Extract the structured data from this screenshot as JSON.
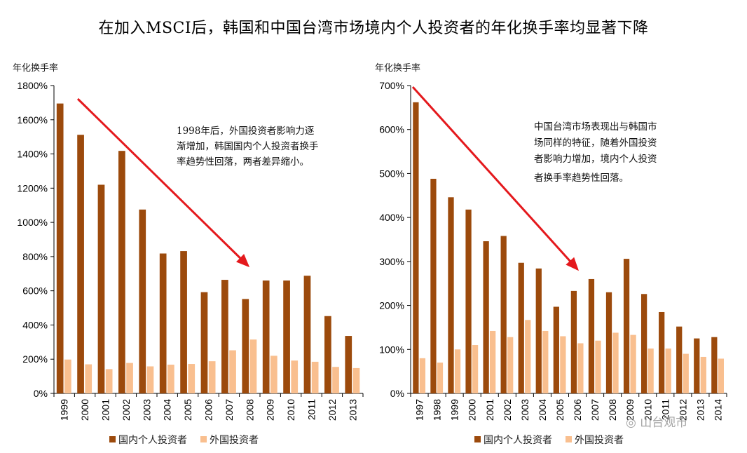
{
  "title": "在加入MSCI后，韩国和中国台湾市场境内个人投资者的年化换手率均显著下降",
  "legend": {
    "domestic": "国内个人投资者",
    "foreign": "外国投资者"
  },
  "colors": {
    "domestic": "#9c4a0c",
    "foreign": "#f9bf8f",
    "arrow": "#e4191d"
  },
  "watermark": "山台观市",
  "chart_data": [
    {
      "type": "bar",
      "ylabel": "年化换手率",
      "ylim": [
        0,
        1800
      ],
      "ytick_values": [
        0,
        200,
        400,
        600,
        800,
        1000,
        1200,
        1400,
        1600,
        1800
      ],
      "ytick_labels": [
        "0%",
        "200%",
        "400%",
        "600%",
        "800%",
        "1000%",
        "1200%",
        "1400%",
        "1600%",
        "1800%"
      ],
      "categories": [
        "1999",
        "2000",
        "2001",
        "2002",
        "2003",
        "2004",
        "2005",
        "2006",
        "2007",
        "2008",
        "2009",
        "2010",
        "2011",
        "2012",
        "2013"
      ],
      "series": [
        {
          "name": "国内个人投资者",
          "values": [
            1695,
            1512,
            1220,
            1418,
            1075,
            818,
            832,
            592,
            664,
            552,
            660,
            660,
            688,
            452,
            336
          ]
        },
        {
          "name": "外国投资者",
          "values": [
            198,
            170,
            142,
            178,
            158,
            168,
            172,
            188,
            252,
            315,
            220,
            192,
            185,
            155,
            148
          ]
        }
      ],
      "annotation": [
        "1998年后，外国投资者影响力逐",
        "渐增加，韩国国内个人投资者换手",
        "率趋势性回落，两者差异缩小。"
      ]
    },
    {
      "type": "bar",
      "ylabel": "年化换手率",
      "ylim": [
        0,
        700
      ],
      "ytick_values": [
        0,
        100,
        200,
        300,
        400,
        500,
        600,
        700
      ],
      "ytick_labels": [
        "0%",
        "100%",
        "200%",
        "300%",
        "400%",
        "500%",
        "600%",
        "700%"
      ],
      "categories": [
        "1997",
        "1998",
        "1999",
        "2000",
        "2001",
        "2002",
        "2003",
        "2004",
        "2005",
        "2006",
        "2007",
        "2008",
        "2009",
        "2010",
        "2011",
        "2012",
        "2013",
        "2014"
      ],
      "series": [
        {
          "name": "国内个人投资者",
          "values": [
            662,
            488,
            446,
            418,
            346,
            358,
            297,
            284,
            197,
            233,
            260,
            230,
            306,
            226,
            185,
            152,
            125,
            128
          ]
        },
        {
          "name": "外国投资者",
          "values": [
            80,
            70,
            100,
            110,
            142,
            128,
            167,
            142,
            130,
            114,
            120,
            138,
            133,
            102,
            102,
            90,
            83,
            79
          ]
        }
      ],
      "annotation": [
        "中国台湾市场表现出与韩国市",
        "场同样的特征，随着外国投资",
        "者影响力增加，境内个人投资",
        "者换手率趋势性回落。"
      ]
    }
  ]
}
